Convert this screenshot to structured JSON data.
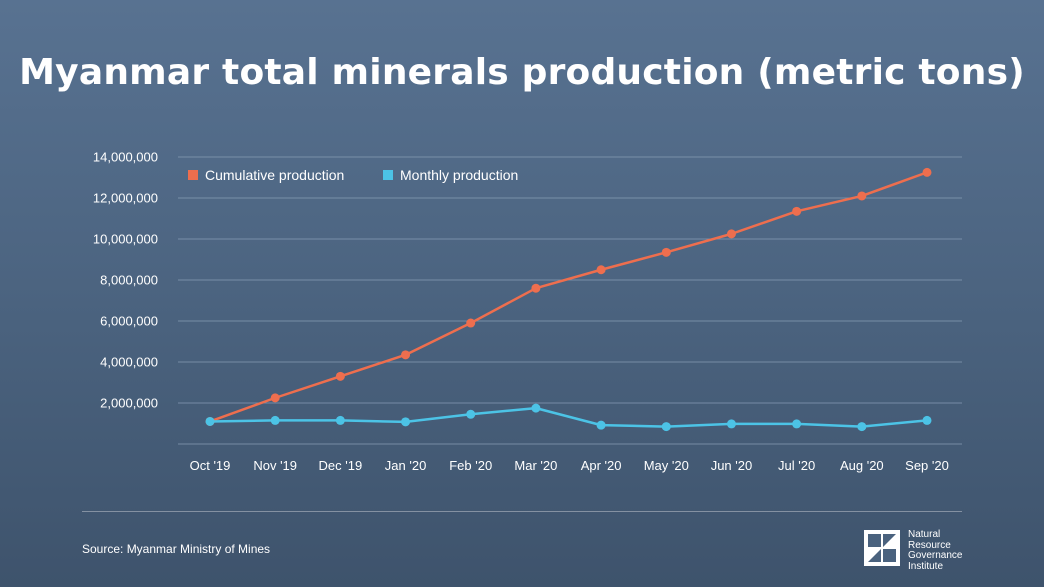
{
  "title": "Myanmar total minerals production (metric tons)",
  "source": "Source: Myanmar Ministry of Mines",
  "logo": {
    "lines": [
      "Natural",
      "Resource",
      "Governance",
      "Institute"
    ]
  },
  "colors": {
    "cumulative": "#ee6e4e",
    "monthly": "#4cc3e6",
    "grid": "#8aa0b8"
  },
  "chart_data": {
    "type": "line",
    "title": "Myanmar total minerals production (metric tons)",
    "xlabel": "",
    "ylabel": "",
    "categories": [
      "Oct '19",
      "Nov '19",
      "Dec '19",
      "Jan '20",
      "Feb '20",
      "Mar '20",
      "Apr '20",
      "May '20",
      "Jun '20",
      "Jul '20",
      "Aug '20",
      "Sep '20"
    ],
    "ylim": [
      0,
      14000000
    ],
    "yticks": [
      2000000,
      4000000,
      6000000,
      8000000,
      10000000,
      12000000,
      14000000
    ],
    "ytick_labels": [
      "2,000,000",
      "4,000,000",
      "6,000,000",
      "8,000,000",
      "10,000,000",
      "12,000,000",
      "14,000,000"
    ],
    "grid": true,
    "legend_position": "top-left",
    "series": [
      {
        "name": "Cumulative production",
        "values": [
          1100000,
          2250000,
          3300000,
          4350000,
          5900000,
          7600000,
          8500000,
          9350000,
          10250000,
          11350000,
          12100000,
          13250000
        ]
      },
      {
        "name": "Monthly production",
        "values": [
          1100000,
          1150000,
          1150000,
          1080000,
          1450000,
          1750000,
          920000,
          850000,
          980000,
          980000,
          850000,
          1150000
        ]
      }
    ]
  }
}
